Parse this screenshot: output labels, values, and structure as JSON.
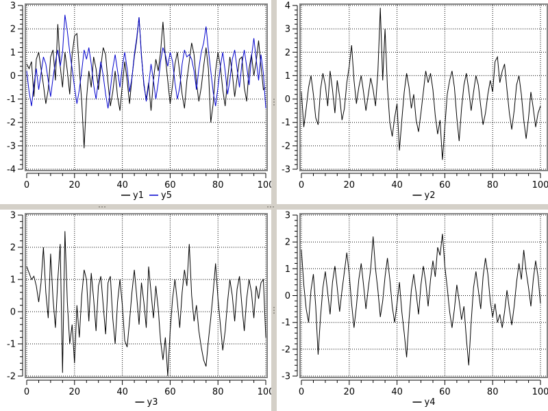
{
  "app": {
    "background": "#ffffff",
    "splitter_color": "#d4d0c8",
    "canvas_frame_color": "#848484",
    "grid_color": "#000000",
    "axis_color": "#000000",
    "tick_font_px": 13
  },
  "chart_data": [
    {
      "id": "y1-y5",
      "type": "line",
      "title": "",
      "xlabel": "",
      "ylabel": "",
      "xlim": [
        0,
        100
      ],
      "ylim": [
        -4,
        3
      ],
      "xticks": [
        0,
        20,
        40,
        60,
        80,
        100
      ],
      "yticks": [
        -4,
        -3,
        -2,
        -1,
        0,
        1,
        2,
        3
      ],
      "x_minor_step": 5,
      "y_minor_step": 0.2,
      "grid": true,
      "legend_position": "bottom",
      "x_start": 0,
      "x_step": 1,
      "series": [
        {
          "name": "y1",
          "color": "#000000",
          "values": [
            0.5,
            0.3,
            0.6,
            -0.9,
            0.7,
            1.0,
            0.3,
            -0.4,
            -1.2,
            -0.6,
            0.8,
            1.1,
            -0.2,
            2.2,
            0.4,
            -0.5,
            1.0,
            0.2,
            -0.8,
            0.9,
            1.7,
            1.8,
            0.3,
            -1.1,
            -3.1,
            -1.0,
            0.2,
            -0.5,
            0.8,
            0.3,
            -0.6,
            0.4,
            1.2,
            0.9,
            -0.3,
            -1.3,
            -0.7,
            0.2,
            -0.9,
            -1.5,
            -0.4,
            0.6,
            -0.2,
            -1.2,
            -0.1,
            0.8,
            1.5,
            2.5,
            0.9,
            -0.4,
            -1.0,
            -0.3,
            -1.5,
            -0.2,
            0.7,
            0.2,
            1.0,
            2.3,
            0.8,
            -0.2,
            -1.2,
            -0.4,
            0.5,
            1.0,
            0.1,
            -0.8,
            -1.4,
            -0.2,
            0.6,
            1.4,
            0.9,
            -0.3,
            -1.1,
            -0.5,
            0.4,
            1.2,
            0.3,
            -2.0,
            -1.2,
            0.2,
            1.0,
            0.4,
            -0.6,
            -1.3,
            -0.2,
            0.8,
            0.1,
            -0.9,
            -0.1,
            0.7,
            0.8,
            -0.5,
            -1.1,
            0.3,
            0.9,
            0.0,
            0.6,
            1.5,
            0.4,
            -0.6,
            -0.5
          ]
        },
        {
          "name": "y5",
          "color": "#0000cd",
          "values": [
            0.2,
            -0.7,
            -1.3,
            -0.4,
            0.3,
            -0.6,
            0.1,
            0.8,
            0.5,
            -0.2,
            -0.9,
            -0.1,
            0.6,
            1.1,
            0.4,
            1.0,
            2.6,
            1.9,
            1.0,
            0.3,
            -0.5,
            -1.2,
            -0.6,
            0.2,
            1.1,
            0.7,
            1.2,
            0.5,
            -0.4,
            -1.0,
            -0.2,
            0.6,
            0.0,
            -0.8,
            -1.4,
            -0.6,
            0.3,
            0.9,
            0.2,
            -0.5,
            0.4,
            1.0,
            0.3,
            -0.7,
            -0.1,
            0.9,
            1.6,
            2.5,
            0.8,
            -0.3,
            -1.1,
            -0.4,
            0.5,
            -0.2,
            -1.0,
            -0.3,
            0.6,
            1.2,
            0.9,
            0.4,
            1.0,
            0.6,
            -0.3,
            -1.0,
            -0.5,
            0.5,
            1.1,
            0.8,
            0.9,
            0.7,
            0.2,
            -0.6,
            0.3,
            1.0,
            1.4,
            2.1,
            1.1,
            0.2,
            -0.7,
            -1.3,
            -0.5,
            0.4,
            1.0,
            0.2,
            -0.8,
            -0.2,
            0.7,
            1.1,
            0.3,
            -0.5,
            0.5,
            1.1,
            0.4,
            -0.4,
            0.8,
            1.6,
            0.7,
            -0.2,
            0.9,
            0.1,
            -1.4
          ]
        }
      ]
    },
    {
      "id": "y2",
      "type": "line",
      "title": "",
      "xlabel": "",
      "ylabel": "",
      "xlim": [
        0,
        100
      ],
      "ylim": [
        -3,
        4
      ],
      "xticks": [
        0,
        20,
        40,
        60,
        80,
        100
      ],
      "yticks": [
        -3,
        -2,
        -1,
        0,
        1,
        2,
        3,
        4
      ],
      "x_minor_step": 5,
      "y_minor_step": 0.2,
      "grid": true,
      "legend_position": "bottom",
      "x_start": 0,
      "x_step": 1,
      "series": [
        {
          "name": "y2",
          "color": "#000000",
          "values": [
            0.3,
            -1.2,
            -0.4,
            0.5,
            1.0,
            0.2,
            -0.8,
            -1.1,
            0.4,
            1.1,
            0.6,
            -0.3,
            1.2,
            0.4,
            -0.6,
            0.8,
            0.1,
            -0.9,
            -0.4,
            0.7,
            1.4,
            2.3,
            0.8,
            -0.2,
            0.5,
            1.0,
            0.3,
            -0.5,
            0.2,
            0.9,
            0.4,
            -0.3,
            1.2,
            3.9,
            0.8,
            3.0,
            0.5,
            -1.0,
            -1.6,
            -0.8,
            -0.2,
            -2.2,
            -0.9,
            0.3,
            1.1,
            0.5,
            -0.4,
            0.2,
            -0.9,
            -1.4,
            -0.6,
            0.3,
            1.2,
            0.7,
            1.1,
            0.4,
            -0.7,
            -1.5,
            -0.9,
            -2.6,
            -1.2,
            0.2,
            0.8,
            1.2,
            0.5,
            -0.8,
            -1.8,
            -0.4,
            0.6,
            1.1,
            0.4,
            -0.5,
            0.3,
            1.0,
            0.6,
            -0.3,
            -1.1,
            -0.6,
            0.2,
            0.8,
            0.3,
            1.6,
            1.8,
            0.7,
            1.2,
            1.5,
            0.4,
            -0.6,
            -1.3,
            -0.5,
            0.6,
            1.0,
            0.2,
            -0.9,
            -1.7,
            -0.8,
            0.3,
            -0.4,
            -1.2,
            -0.6,
            -0.3
          ]
        }
      ]
    },
    {
      "id": "y3",
      "type": "line",
      "title": "",
      "xlabel": "",
      "ylabel": "",
      "xlim": [
        0,
        100
      ],
      "ylim": [
        -2,
        3
      ],
      "xticks": [
        0,
        20,
        40,
        60,
        80,
        100
      ],
      "yticks": [
        -2,
        -1,
        0,
        1,
        2,
        3
      ],
      "x_minor_step": 5,
      "y_minor_step": 0.2,
      "grid": true,
      "legend_position": "bottom",
      "x_start": 0,
      "x_step": 1,
      "series": [
        {
          "name": "y3",
          "color": "#000000",
          "values": [
            1.4,
            1.2,
            1.0,
            1.1,
            0.8,
            0.3,
            0.9,
            2.0,
            0.6,
            -0.2,
            1.8,
            0.4,
            -0.5,
            1.0,
            2.1,
            -1.9,
            2.5,
            0.3,
            -1.0,
            -0.4,
            -1.6,
            0.2,
            -0.8,
            0.5,
            1.3,
            1.0,
            -0.3,
            1.2,
            0.4,
            -0.6,
            0.8,
            1.1,
            0.2,
            -0.7,
            0.9,
            1.1,
            -0.2,
            -1.0,
            0.3,
            1.0,
            0.2,
            -0.9,
            -1.1,
            -0.3,
            0.6,
            1.3,
            0.5,
            -0.4,
            0.9,
            0.3,
            -0.5,
            1.4,
            0.6,
            -0.2,
            0.8,
            0.1,
            -0.9,
            -1.5,
            -0.8,
            -2.0,
            -0.6,
            0.4,
            1.0,
            0.3,
            -0.5,
            0.6,
            1.3,
            0.8,
            2.1,
            0.5,
            -0.3,
            0.2,
            -0.6,
            -1.1,
            -1.5,
            -1.7,
            -0.9,
            -0.2,
            0.6,
            1.5,
            0.4,
            -0.4,
            -1.2,
            -0.6,
            0.3,
            1.0,
            0.5,
            -0.3,
            0.7,
            1.1,
            0.2,
            -0.6,
            0.4,
            1.0,
            0.6,
            -0.2,
            0.8,
            0.4,
            0.9,
            1.0,
            -0.8
          ]
        }
      ]
    },
    {
      "id": "y4",
      "type": "line",
      "title": "",
      "xlabel": "",
      "ylabel": "",
      "xlim": [
        0,
        100
      ],
      "ylim": [
        -3,
        3
      ],
      "xticks": [
        0,
        20,
        40,
        60,
        80,
        100
      ],
      "yticks": [
        -3,
        -2,
        -1,
        0,
        1,
        2,
        3
      ],
      "x_minor_step": 5,
      "y_minor_step": 0.2,
      "grid": true,
      "legend_position": "bottom",
      "x_start": 0,
      "x_step": 1,
      "series": [
        {
          "name": "y4",
          "color": "#000000",
          "values": [
            1.7,
            0.4,
            -0.5,
            -1.0,
            0.2,
            0.8,
            -0.4,
            -2.2,
            -0.8,
            0.3,
            0.9,
            0.1,
            -0.7,
            0.5,
            1.1,
            0.3,
            -0.6,
            0.2,
            0.9,
            1.6,
            0.8,
            -0.3,
            -1.2,
            -0.4,
            0.6,
            1.2,
            0.4,
            -0.5,
            0.3,
            1.0,
            2.2,
            1.0,
            0.2,
            -0.8,
            -0.2,
            0.7,
            1.4,
            0.6,
            -0.4,
            -1.0,
            -0.3,
            0.5,
            -0.6,
            -1.4,
            -2.3,
            -0.9,
            0.2,
            0.8,
            0.1,
            -0.7,
            0.4,
            1.1,
            0.5,
            -0.4,
            0.6,
            1.3,
            0.7,
            1.8,
            1.5,
            2.3,
            1.1,
            0.3,
            -0.6,
            -1.2,
            -0.5,
            0.4,
            -0.2,
            -0.9,
            -0.4,
            -1.6,
            -2.6,
            -1.0,
            0.3,
            0.9,
            0.2,
            -0.5,
            0.7,
            1.4,
            0.8,
            -0.2,
            -0.8,
            -0.3,
            -1.0,
            -0.7,
            -1.2,
            -0.6,
            0.2,
            -0.5,
            -1.1,
            -0.4,
            0.5,
            1.2,
            0.6,
            1.7,
            0.9,
            0.3,
            -0.4,
            0.6,
            1.3,
            0.7,
            -0.3
          ]
        }
      ]
    }
  ]
}
